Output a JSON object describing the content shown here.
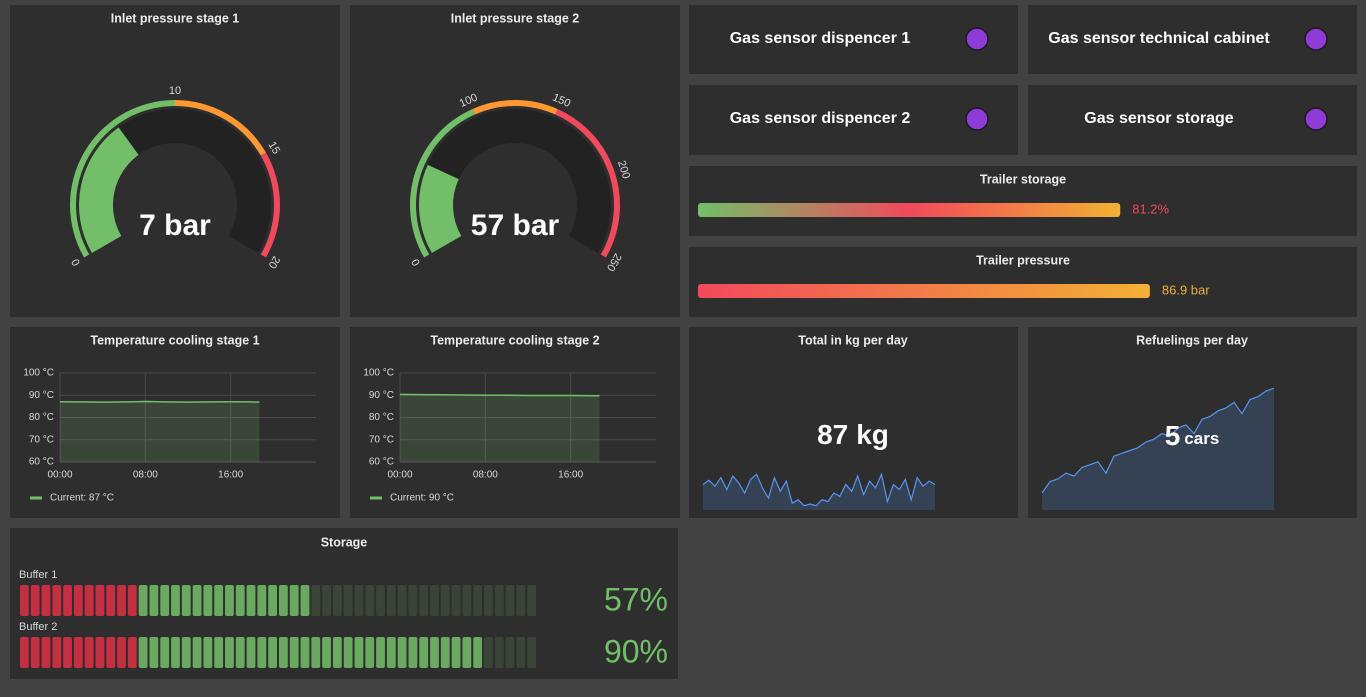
{
  "gauges": [
    {
      "title": "Inlet pressure stage 1",
      "type": "gauge",
      "value": 7,
      "value_label": "7 bar",
      "ylim": [
        0,
        20
      ],
      "ticks": [
        0,
        10,
        15,
        20
      ],
      "colors": [
        "#73bf69",
        "#ff9830",
        "#f2495c"
      ]
    },
    {
      "title": "Inlet pressure stage 2",
      "type": "gauge",
      "value": 57,
      "value_label": "57 bar",
      "ylim": [
        0,
        250
      ],
      "ticks": [
        0,
        100,
        150,
        200,
        250
      ],
      "colors": [
        "#73bf69",
        "#ff9830",
        "#f2495c",
        "#f2495c"
      ]
    }
  ],
  "sensors": [
    {
      "label": "Gas sensor dispencer 1",
      "color": "#8f3bd8"
    },
    {
      "label": "Gas sensor technical cabinet",
      "color": "#8f3bd8"
    },
    {
      "label": "Gas sensor dispencer 2",
      "color": "#8f3bd8"
    },
    {
      "label": "Gas sensor storage",
      "color": "#8f3bd8"
    }
  ],
  "bar_gauges": [
    {
      "title": "Trailer storage",
      "type": "bar",
      "value": 81.2,
      "value_label": "81.2%",
      "xlim": [
        0,
        100
      ],
      "gradient": [
        "#73bf69",
        "#f2495c",
        "#f2b134"
      ],
      "label_color": "#f2495c"
    },
    {
      "title": "Trailer pressure",
      "type": "bar",
      "value": 86.9,
      "value_label": "86.9 bar",
      "xlim": [
        0,
        100
      ],
      "gradient": [
        "#f2495c",
        "#f2b134"
      ],
      "label_color": "#f2b134"
    }
  ],
  "timeseries": [
    {
      "title": "Temperature cooling stage 1",
      "type": "line",
      "x": [
        0,
        2,
        4,
        6,
        8,
        10,
        12,
        14,
        16,
        18,
        18.7
      ],
      "series": [
        {
          "name": "Current: 87 °C",
          "color": "#73bf69",
          "values": [
            87.1,
            87,
            86.9,
            87,
            87.2,
            87,
            86.9,
            87,
            87.1,
            87,
            86.9
          ]
        }
      ],
      "xlim": [
        0,
        24
      ],
      "ylim": [
        60,
        100
      ],
      "xticks": [
        {
          "value": 0,
          "label": "00:00"
        },
        {
          "value": 8,
          "label": "08:00"
        },
        {
          "value": 16,
          "label": "16:00"
        }
      ],
      "yticks": [
        {
          "value": 60,
          "label": "60 °C"
        },
        {
          "value": 70,
          "label": "70 °C"
        },
        {
          "value": 80,
          "label": "80 °C"
        },
        {
          "value": 90,
          "label": "90 °C"
        },
        {
          "value": 100,
          "label": "100 °C"
        }
      ],
      "grid": true
    },
    {
      "title": "Temperature cooling stage 2",
      "type": "line",
      "x": [
        0,
        2,
        4,
        6,
        8,
        10,
        12,
        14,
        16,
        18,
        18.7
      ],
      "series": [
        {
          "name": "Current: 90 °C",
          "color": "#73bf69",
          "values": [
            90.4,
            90.3,
            90.2,
            90.1,
            90,
            90,
            89.9,
            89.9,
            89.9,
            89.8,
            89.8
          ]
        }
      ],
      "xlim": [
        0,
        24
      ],
      "ylim": [
        60,
        100
      ],
      "xticks": [
        {
          "value": 0,
          "label": "00:00"
        },
        {
          "value": 8,
          "label": "08:00"
        },
        {
          "value": 16,
          "label": "16:00"
        }
      ],
      "yticks": [
        {
          "value": 60,
          "label": "60 °C"
        },
        {
          "value": 70,
          "label": "70 °C"
        },
        {
          "value": 80,
          "label": "80 °C"
        },
        {
          "value": 90,
          "label": "90 °C"
        },
        {
          "value": 100,
          "label": "100 °C"
        }
      ],
      "grid": true
    }
  ],
  "stats": [
    {
      "title": "Total in kg per day",
      "type": "stat",
      "value": 87,
      "unit": "kg",
      "sparkline": {
        "color": "#5794f2",
        "ylim": [
          50,
          250
        ],
        "values": [
          80,
          85,
          78,
          88,
          74,
          90,
          82,
          70,
          86,
          92,
          76,
          64,
          88,
          72,
          84,
          58,
          62,
          55,
          57,
          55,
          62,
          60,
          70,
          66,
          80,
          72,
          90,
          68,
          84,
          76,
          92,
          60,
          80,
          74,
          86,
          62,
          88,
          78,
          84,
          80
        ]
      }
    },
    {
      "title": "Refuelings per day",
      "type": "stat",
      "value": 5,
      "unit": "cars",
      "sparkline": {
        "color": "#5794f2",
        "ylim": [
          0,
          6
        ],
        "values": [
          0.6,
          1.0,
          1.1,
          1.3,
          1.2,
          1.5,
          1.6,
          1.7,
          1.3,
          1.9,
          2.0,
          2.1,
          2.2,
          2.4,
          2.5,
          2.7,
          2.6,
          2.9,
          3.0,
          2.7,
          3.2,
          3.3,
          3.5,
          3.6,
          3.8,
          3.4,
          3.9,
          4.0,
          4.2,
          4.3
        ]
      }
    }
  ],
  "storage": {
    "title": "Storage",
    "type": "bar",
    "xlim": [
      0,
      100
    ],
    "threshold": 23,
    "low_color": "#e02f44",
    "high_color": "#73bf69",
    "rows": [
      {
        "label": "Buffer 1",
        "value": 57,
        "value_label": "57%"
      },
      {
        "label": "Buffer 2",
        "value": 90,
        "value_label": "90%"
      }
    ]
  }
}
